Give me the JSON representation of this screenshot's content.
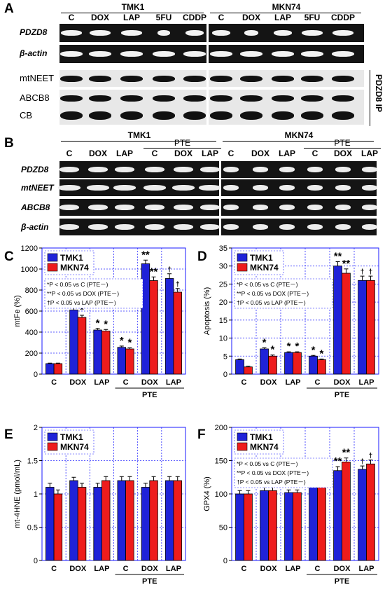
{
  "panelA": {
    "letter": "A",
    "groups": [
      "TMK1",
      "MKN74"
    ],
    "lanes": [
      "C",
      "DOX",
      "LAP",
      "5FU",
      "CDDP"
    ],
    "rows": [
      {
        "label": "PDZD8",
        "type": "rt"
      },
      {
        "label": "β-actin",
        "type": "rt"
      },
      {
        "label": "mtNEET",
        "type": "wb"
      },
      {
        "label": "ABCB8",
        "type": "wb"
      },
      {
        "label": "CB",
        "type": "wb"
      }
    ],
    "ip_label": "PDZD8 IP"
  },
  "panelB": {
    "letter": "B",
    "groups": [
      "TMK1",
      "MKN74"
    ],
    "pte_label": "PTE",
    "lanes": [
      "C",
      "DOX",
      "LAP",
      "C",
      "DOX",
      "LAP"
    ],
    "rows": [
      "PDZD8",
      "mtNEET",
      "ABCB8",
      "β-actin"
    ]
  },
  "chart_data": [
    {
      "panel": "C",
      "type": "bar",
      "ylabel": "mtFe (%)",
      "ylim": [
        0,
        1200
      ],
      "yticks": [
        0,
        200,
        400,
        600,
        800,
        1000,
        1200
      ],
      "categories": [
        "C",
        "DOX",
        "LAP",
        "C",
        "DOX",
        "LAP"
      ],
      "group_label": "PTE",
      "legend_placement": "top-left",
      "series": [
        {
          "name": "TMK1",
          "color": "#1f22d8",
          "values": [
            100,
            610,
            420,
            255,
            1050,
            910
          ],
          "errors": [
            5,
            30,
            15,
            12,
            35,
            45
          ]
        },
        {
          "name": "MKN74",
          "color": "#ee1c1c",
          "values": [
            100,
            540,
            410,
            240,
            890,
            780
          ],
          "errors": [
            5,
            20,
            15,
            10,
            35,
            35
          ]
        }
      ],
      "marks_tmk1": [
        "",
        "*",
        "*",
        "*",
        "**",
        "†"
      ],
      "marks_mkn74": [
        "",
        "*",
        "*",
        "*",
        "**",
        "†"
      ],
      "notes": [
        "*P < 0.05 vs C (PTE－)",
        "**P < 0.05 vs DOX (PTE－)",
        "†P < 0.05 vs LAP (PTE－)"
      ]
    },
    {
      "panel": "D",
      "type": "bar",
      "ylabel": "Apoptosis (%)",
      "ylim": [
        0,
        35
      ],
      "yticks": [
        0,
        5,
        10,
        15,
        20,
        25,
        30,
        35
      ],
      "categories": [
        "C",
        "DOX",
        "LAP",
        "C",
        "DOX",
        "LAP"
      ],
      "group_label": "PTE",
      "legend_placement": "top-left",
      "series": [
        {
          "name": "TMK1",
          "color": "#1f22d8",
          "values": [
            4,
            7,
            6,
            5,
            30,
            26
          ],
          "errors": [
            0.2,
            0.3,
            0.2,
            0.2,
            1.2,
            1.2
          ]
        },
        {
          "name": "MKN74",
          "color": "#ee1c1c",
          "values": [
            2,
            5,
            6,
            4,
            28,
            26
          ],
          "errors": [
            0.2,
            0.3,
            0.2,
            0.2,
            1.2,
            1.2
          ]
        }
      ],
      "marks_tmk1": [
        "",
        "*",
        "*",
        "*",
        "**",
        "†"
      ],
      "marks_mkn74": [
        "",
        "*",
        "*",
        "*",
        "**",
        "†"
      ],
      "notes": [
        "*P < 0.05 vs C (PTE－)",
        "**P < 0.05 vs DOX (PTE－)",
        "†P < 0.05 vs LAP (PTE－)"
      ]
    },
    {
      "panel": "E",
      "type": "bar",
      "ylabel": "mt-4HNE (pmol/mL)",
      "ylim": [
        0,
        2
      ],
      "yticks": [
        0,
        0.5,
        1,
        1.5,
        2
      ],
      "ytick_labels": [
        "0",
        "0.5",
        "1",
        "1.5",
        "2"
      ],
      "categories": [
        "C",
        "DOX",
        "LAP",
        "C",
        "DOX",
        "LAP"
      ],
      "group_label": "PTE",
      "legend_placement": "top-left",
      "series": [
        {
          "name": "TMK1",
          "color": "#1f22d8",
          "values": [
            1.1,
            1.2,
            1.1,
            1.2,
            1.1,
            1.2
          ],
          "errors": [
            0.06,
            0.05,
            0.06,
            0.06,
            0.06,
            0.06
          ]
        },
        {
          "name": "MKN74",
          "color": "#ee1c1c",
          "values": [
            1.0,
            1.1,
            1.2,
            1.2,
            1.2,
            1.2
          ],
          "errors": [
            0.06,
            0.06,
            0.06,
            0.06,
            0.06,
            0.06
          ]
        }
      ],
      "marks_tmk1": [
        "",
        "",
        "",
        "",
        "",
        ""
      ],
      "marks_mkn74": [
        "",
        "",
        "",
        "",
        "",
        ""
      ],
      "notes": []
    },
    {
      "panel": "F",
      "type": "bar",
      "ylabel": "GPX4 (%)",
      "ylim": [
        0,
        200
      ],
      "yticks": [
        0,
        50,
        100,
        150,
        200
      ],
      "categories": [
        "C",
        "DOX",
        "LAP",
        "C",
        "DOX",
        "LAP"
      ],
      "group_label": "PTE",
      "legend_placement": "top-left",
      "series": [
        {
          "name": "TMK1",
          "color": "#1f22d8",
          "values": [
            100,
            105,
            102,
            115,
            135,
            137
          ],
          "errors": [
            5,
            5,
            4,
            5,
            6,
            5
          ]
        },
        {
          "name": "MKN74",
          "color": "#ee1c1c",
          "values": [
            100,
            105,
            102,
            120,
            148,
            145
          ],
          "errors": [
            5,
            5,
            4,
            5,
            6,
            6
          ]
        }
      ],
      "marks_tmk1": [
        "",
        "",
        "",
        "*",
        "**",
        "†"
      ],
      "marks_mkn74": [
        "",
        "",
        "",
        "*",
        "**",
        "†"
      ],
      "notes": [
        "*P < 0.05 vs C (PTE－)",
        "**P < 0.05 vs DOX (PTE－)",
        "†P < 0.05 vs LAP (PTE－)"
      ]
    }
  ]
}
